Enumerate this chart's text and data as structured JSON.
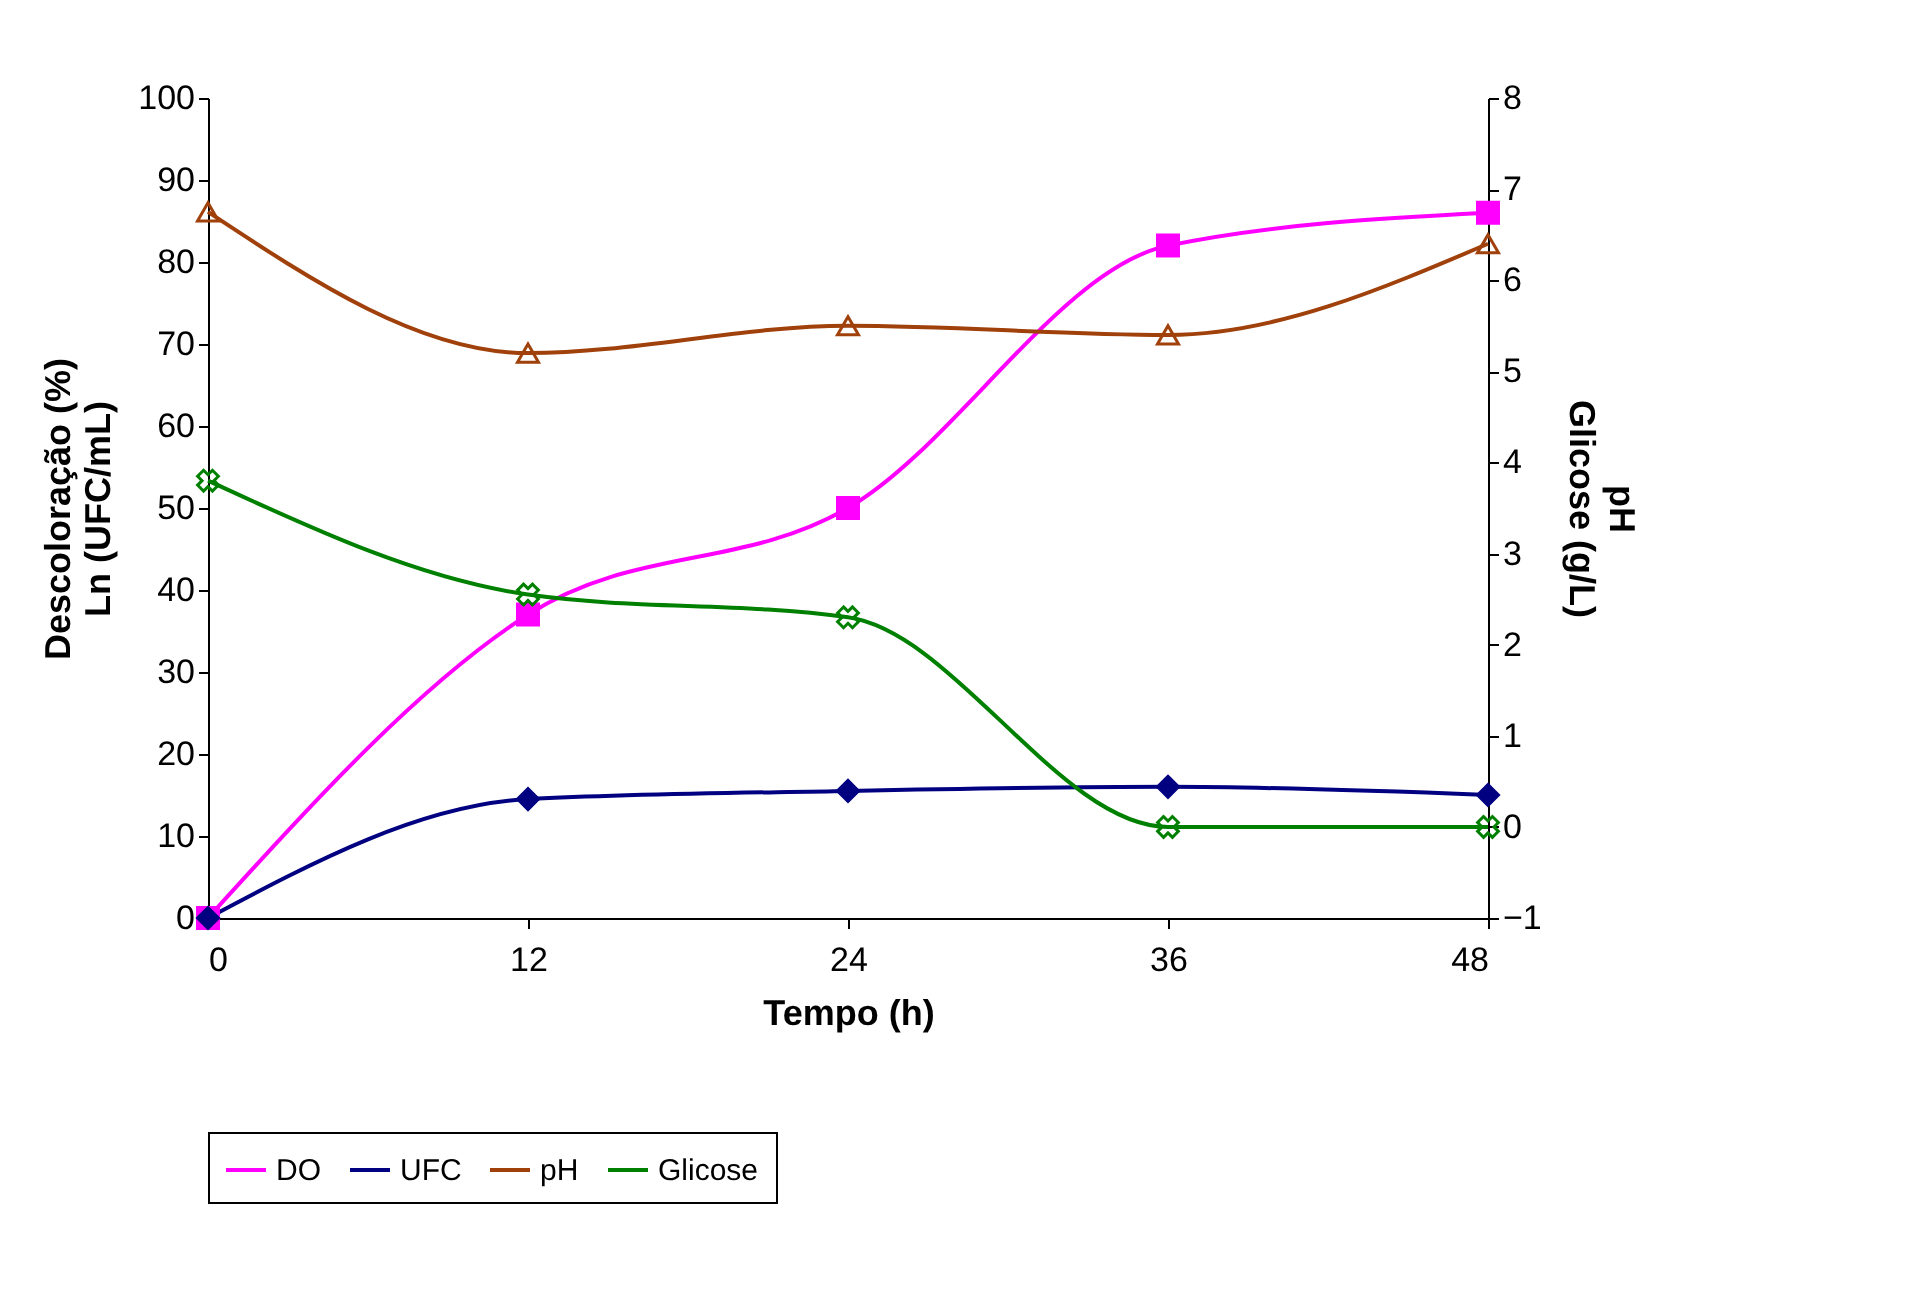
{
  "chart_data": {
    "type": "line",
    "xlabel": "Tempo (h)",
    "ylabel": "Descoloração (%)\nLn (UFC/mL)",
    "y2label": "pH\nGlicose (g/L)",
    "x": [
      0,
      12,
      24,
      36,
      48
    ],
    "series": [
      {
        "name": "DO",
        "color": "#ff00ff",
        "marker": "square",
        "values": [
          0,
          37,
          50,
          82,
          86
        ]
      },
      {
        "name": "UFC",
        "color": "#000080",
        "marker": "diamond",
        "values": [
          0,
          14.5,
          15.5,
          16,
          15
        ]
      },
      {
        "name": "pH",
        "color": "#a0400a",
        "marker": "triangle",
        "axis": "y2",
        "values": [
          6.75,
          5.2,
          5.5,
          5.4,
          6.4
        ]
      },
      {
        "name": "Glicose",
        "color": "#008000",
        "marker": "cross",
        "axis": "y2",
        "values": [
          3.8,
          2.55,
          2.3,
          0,
          0
        ]
      }
    ],
    "xlim": [
      0,
      48
    ],
    "xticks": [
      0,
      12,
      24,
      36,
      48
    ],
    "ylim": [
      0,
      100
    ],
    "yticks": [
      0,
      10,
      20,
      30,
      40,
      50,
      60,
      70,
      80,
      90,
      100
    ],
    "y2lim": [
      -1,
      8
    ],
    "y2ticks": [
      -1,
      0,
      1,
      2,
      3,
      4,
      5,
      6,
      7,
      8
    ],
    "grid": false,
    "legend": "bottom",
    "line_style": "solid"
  }
}
